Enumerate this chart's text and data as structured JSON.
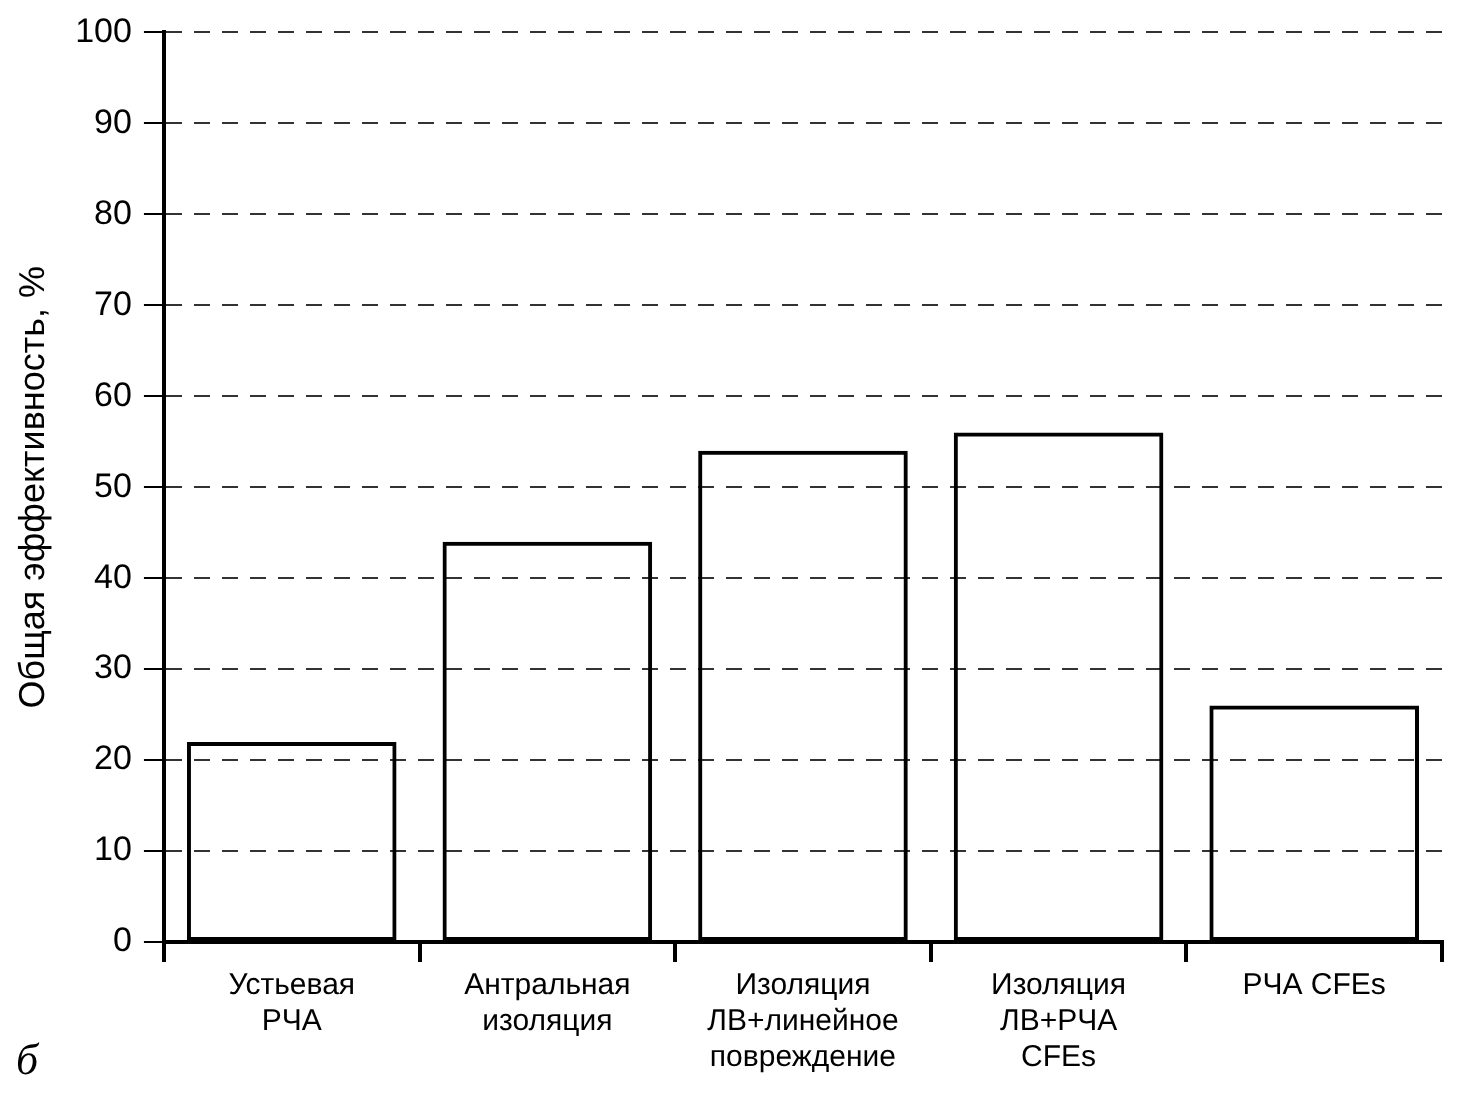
{
  "chart_data": {
    "type": "bar",
    "categories": [
      "Устьевая\nРЧА",
      "Антральная\nизоляция",
      "Изоляция\nЛВ+линейное\nповреждение",
      "Изоляция\nЛВ+РЧА\nCFEs",
      "РЧА CFEs"
    ],
    "values": [
      22,
      44,
      54,
      56,
      26
    ],
    "color": "#000000",
    "ylabel": "Общая эффективность, %",
    "ylim": [
      0,
      100
    ],
    "yticks": [
      0,
      10,
      20,
      30,
      40,
      50,
      60,
      70,
      80,
      90,
      100
    ],
    "grid": "y",
    "legend": false,
    "annotations": [
      "б"
    ]
  }
}
